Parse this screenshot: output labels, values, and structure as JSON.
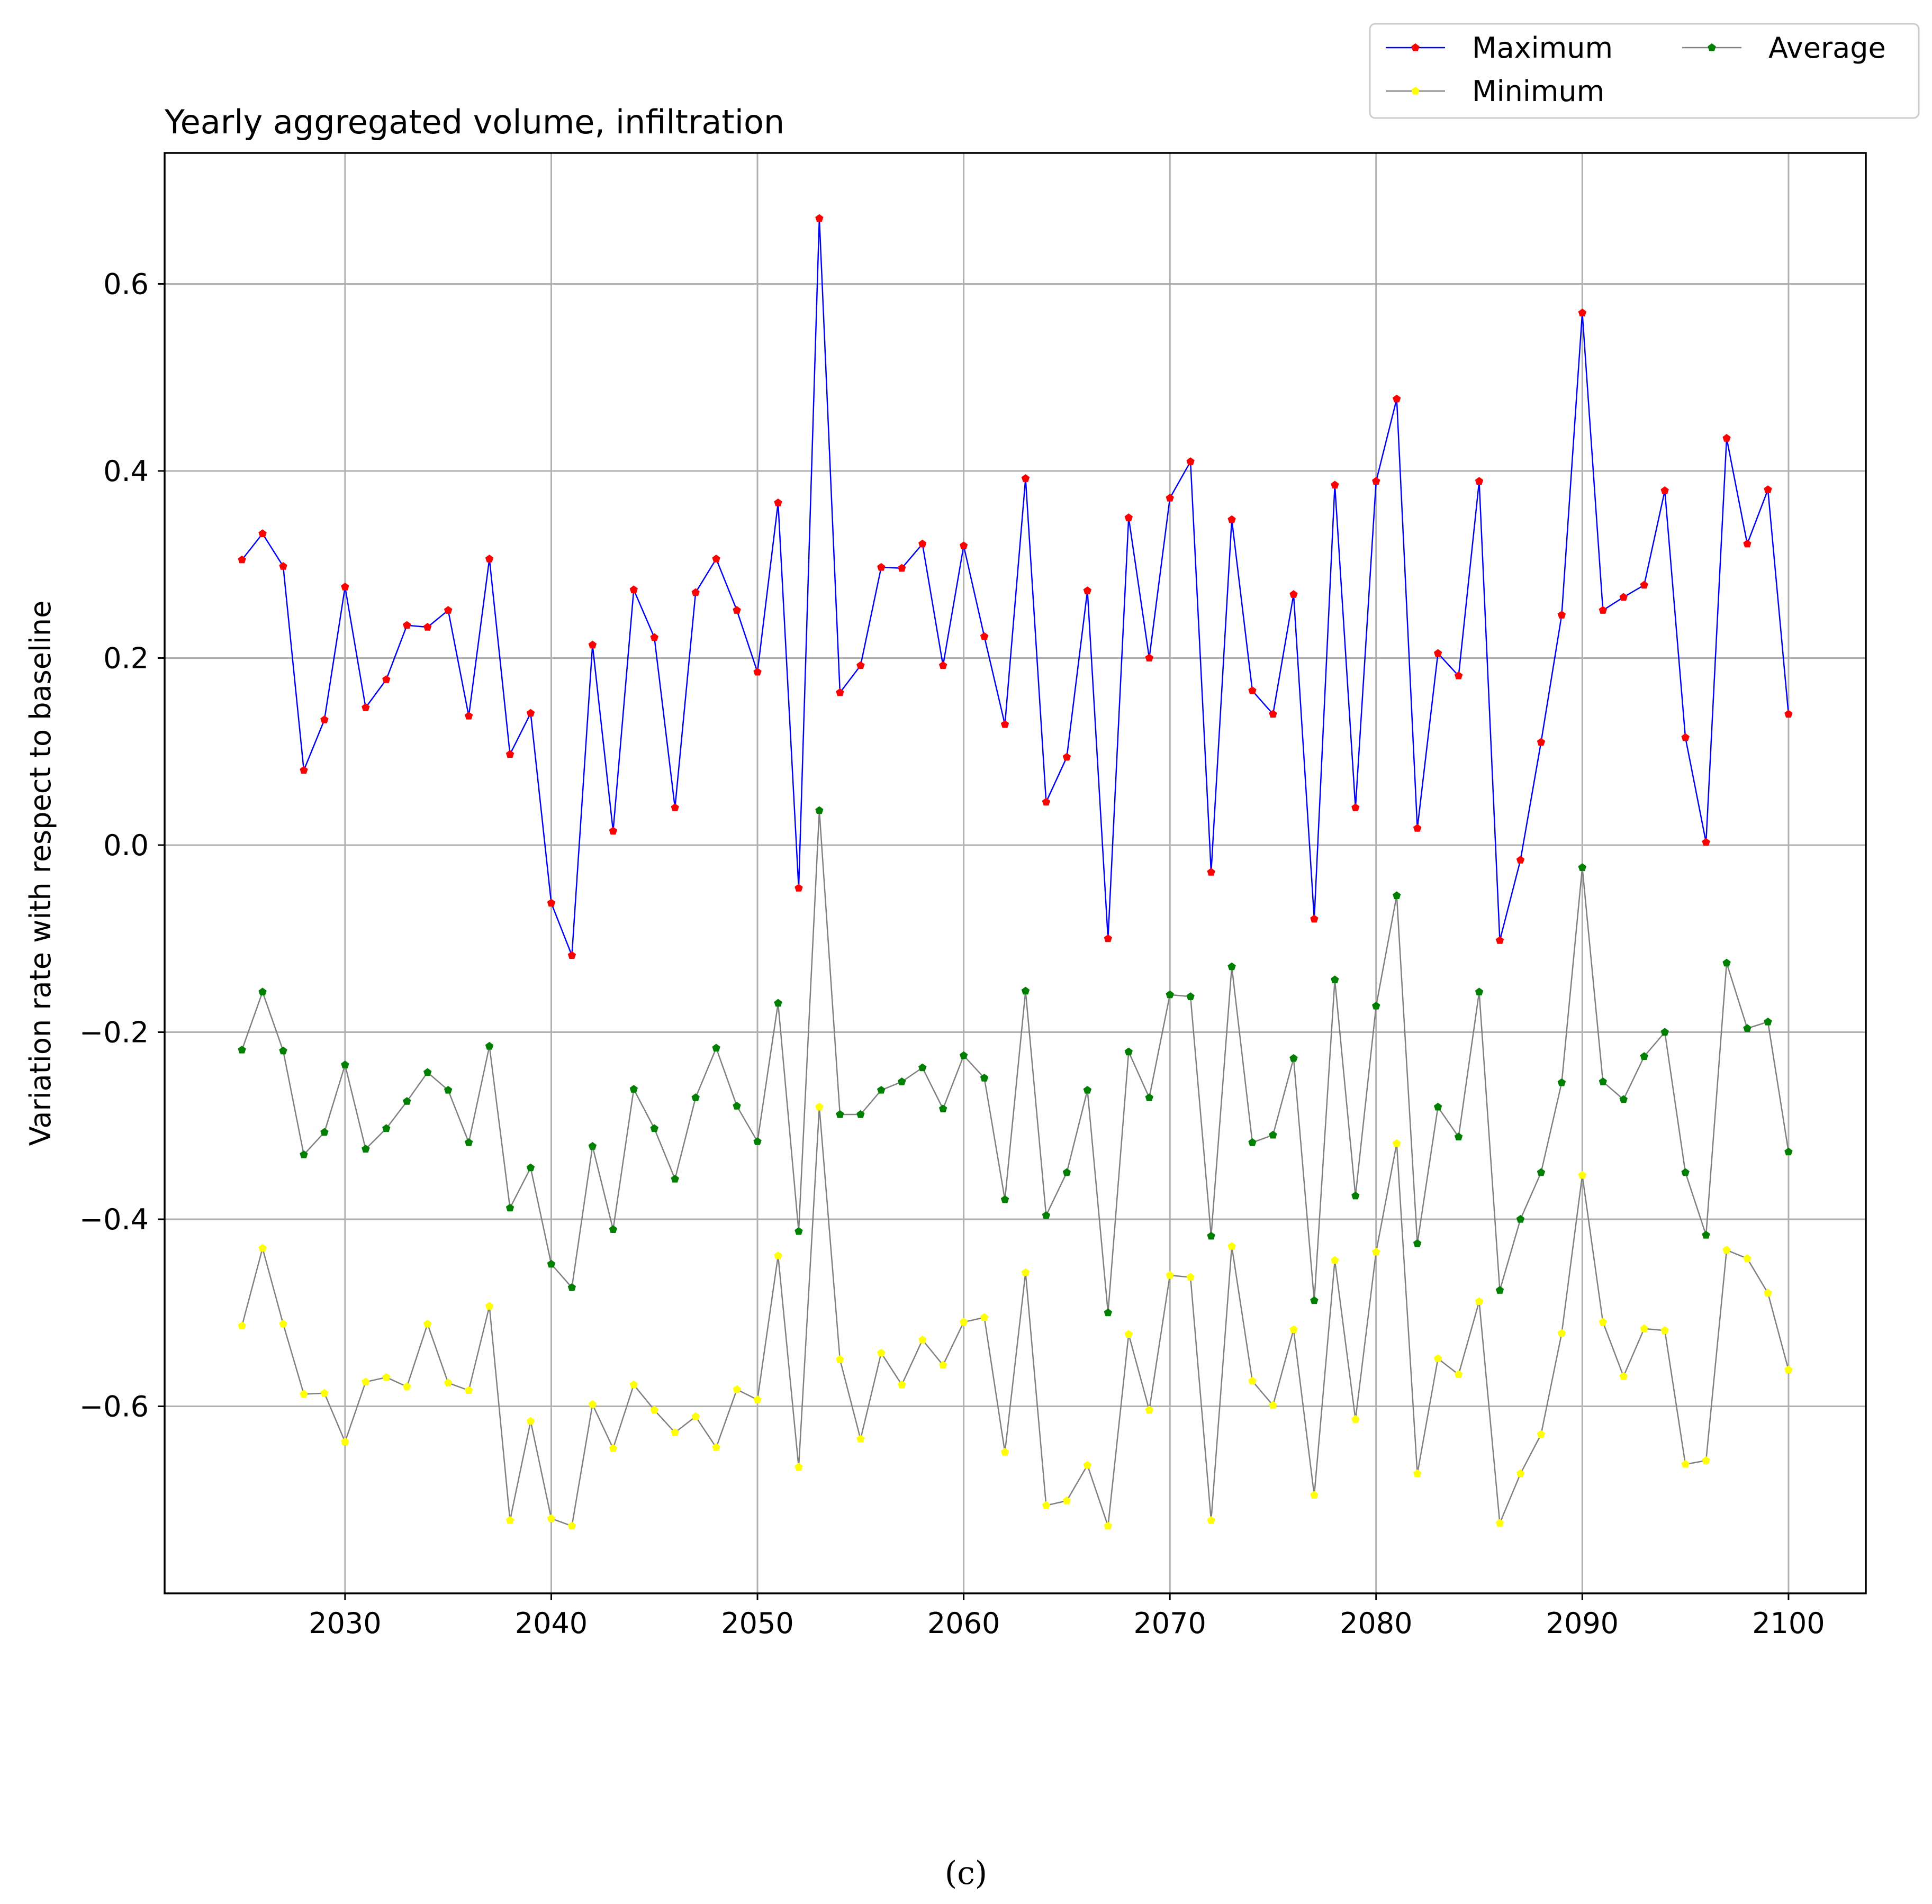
{
  "chart_data": {
    "type": "line",
    "title": "Yearly aggregated volume, infiltration",
    "xlabel": "",
    "ylabel": "Variation rate with respect to baseline",
    "xlim": [
      2021.25,
      2103.75
    ],
    "ylim": [
      -0.8,
      0.74
    ],
    "xticks": [
      2030,
      2040,
      2050,
      2060,
      2070,
      2080,
      2090,
      2100
    ],
    "xtick_labels": [
      "2030",
      "2040",
      "2050",
      "2060",
      "2070",
      "2080",
      "2090",
      "2100"
    ],
    "yticks": [
      -0.6,
      -0.4,
      -0.2,
      0.0,
      0.2,
      0.4,
      0.6
    ],
    "ytick_labels": [
      "−0.6",
      "−0.4",
      "−0.2",
      "0.0",
      "0.2",
      "0.4",
      "0.6"
    ],
    "grid": true,
    "legend_position": "upper-right-outside",
    "legend_order": [
      0,
      2,
      1
    ],
    "x": [
      2025,
      2026,
      2027,
      2028,
      2029,
      2030,
      2031,
      2032,
      2033,
      2034,
      2035,
      2036,
      2037,
      2038,
      2039,
      2040,
      2041,
      2042,
      2043,
      2044,
      2045,
      2046,
      2047,
      2048,
      2049,
      2050,
      2051,
      2052,
      2053,
      2054,
      2055,
      2056,
      2057,
      2058,
      2059,
      2060,
      2061,
      2062,
      2063,
      2064,
      2065,
      2066,
      2067,
      2068,
      2069,
      2070,
      2071,
      2072,
      2073,
      2074,
      2075,
      2076,
      2077,
      2078,
      2079,
      2080,
      2081,
      2082,
      2083,
      2084,
      2085,
      2086,
      2087,
      2088,
      2089,
      2090,
      2091,
      2092,
      2093,
      2094,
      2095,
      2096,
      2097,
      2098,
      2099,
      2100
    ],
    "series": [
      {
        "name": "Maximum",
        "line_color": "#0000ff",
        "marker_color": "#ff0000",
        "values": [
          0.305,
          0.333,
          0.298,
          0.08,
          0.134,
          0.276,
          0.147,
          0.177,
          0.235,
          0.233,
          0.251,
          0.138,
          0.306,
          0.097,
          0.141,
          -0.062,
          -0.118,
          0.214,
          0.015,
          0.273,
          0.222,
          0.04,
          0.27,
          0.306,
          0.251,
          0.185,
          0.366,
          -0.046,
          0.67,
          0.163,
          0.192,
          0.297,
          0.296,
          0.322,
          0.192,
          0.32,
          0.223,
          0.129,
          0.392,
          0.046,
          0.094,
          0.272,
          -0.1,
          0.35,
          0.2,
          0.371,
          0.41,
          -0.029,
          0.348,
          0.165,
          0.14,
          0.268,
          -0.079,
          0.385,
          0.04,
          0.389,
          0.477,
          0.018,
          0.205,
          0.181,
          0.389,
          -0.102,
          -0.016,
          0.11,
          0.246,
          0.569,
          0.251,
          0.265,
          0.278,
          0.379,
          0.115,
          0.003,
          0.435,
          0.322,
          0.38,
          0.14
        ]
      },
      {
        "name": "Average",
        "line_color": "#808080",
        "marker_color": "#008000",
        "values": [
          -0.219,
          -0.157,
          -0.22,
          -0.331,
          -0.307,
          -0.235,
          -0.325,
          -0.303,
          -0.274,
          -0.243,
          -0.262,
          -0.318,
          -0.215,
          -0.388,
          -0.345,
          -0.448,
          -0.473,
          -0.322,
          -0.411,
          -0.261,
          -0.303,
          -0.357,
          -0.27,
          -0.217,
          -0.279,
          -0.317,
          -0.169,
          -0.413,
          0.037,
          -0.288,
          -0.288,
          -0.262,
          -0.253,
          -0.238,
          -0.282,
          -0.225,
          -0.249,
          -0.379,
          -0.156,
          -0.396,
          -0.35,
          -0.262,
          -0.5,
          -0.221,
          -0.27,
          -0.16,
          -0.162,
          -0.418,
          -0.13,
          -0.318,
          -0.31,
          -0.228,
          -0.487,
          -0.144,
          -0.375,
          -0.172,
          -0.054,
          -0.426,
          -0.28,
          -0.312,
          -0.157,
          -0.476,
          -0.4,
          -0.35,
          -0.254,
          -0.024,
          -0.253,
          -0.272,
          -0.226,
          -0.2,
          -0.35,
          -0.417,
          -0.126,
          -0.196,
          -0.189,
          -0.328
        ]
      },
      {
        "name": "Minimum",
        "line_color": "#808080",
        "marker_color": "#ffff00",
        "values": [
          -0.514,
          -0.431,
          -0.512,
          -0.587,
          -0.586,
          -0.638,
          -0.574,
          -0.569,
          -0.579,
          -0.512,
          -0.575,
          -0.583,
          -0.493,
          -0.722,
          -0.616,
          -0.72,
          -0.728,
          -0.598,
          -0.645,
          -0.577,
          -0.604,
          -0.628,
          -0.611,
          -0.644,
          -0.582,
          -0.593,
          -0.439,
          -0.665,
          -0.28,
          -0.55,
          -0.635,
          -0.543,
          -0.577,
          -0.529,
          -0.556,
          -0.51,
          -0.505,
          -0.649,
          -0.457,
          -0.706,
          -0.701,
          -0.663,
          -0.728,
          -0.523,
          -0.604,
          -0.46,
          -0.462,
          -0.722,
          -0.429,
          -0.573,
          -0.599,
          -0.518,
          -0.695,
          -0.444,
          -0.614,
          -0.435,
          -0.319,
          -0.672,
          -0.549,
          -0.566,
          -0.488,
          -0.725,
          -0.672,
          -0.63,
          -0.522,
          -0.353,
          -0.51,
          -0.568,
          -0.517,
          -0.519,
          -0.662,
          -0.658,
          -0.433,
          -0.442,
          -0.479,
          -0.561
        ]
      }
    ]
  },
  "caption": "(c)"
}
